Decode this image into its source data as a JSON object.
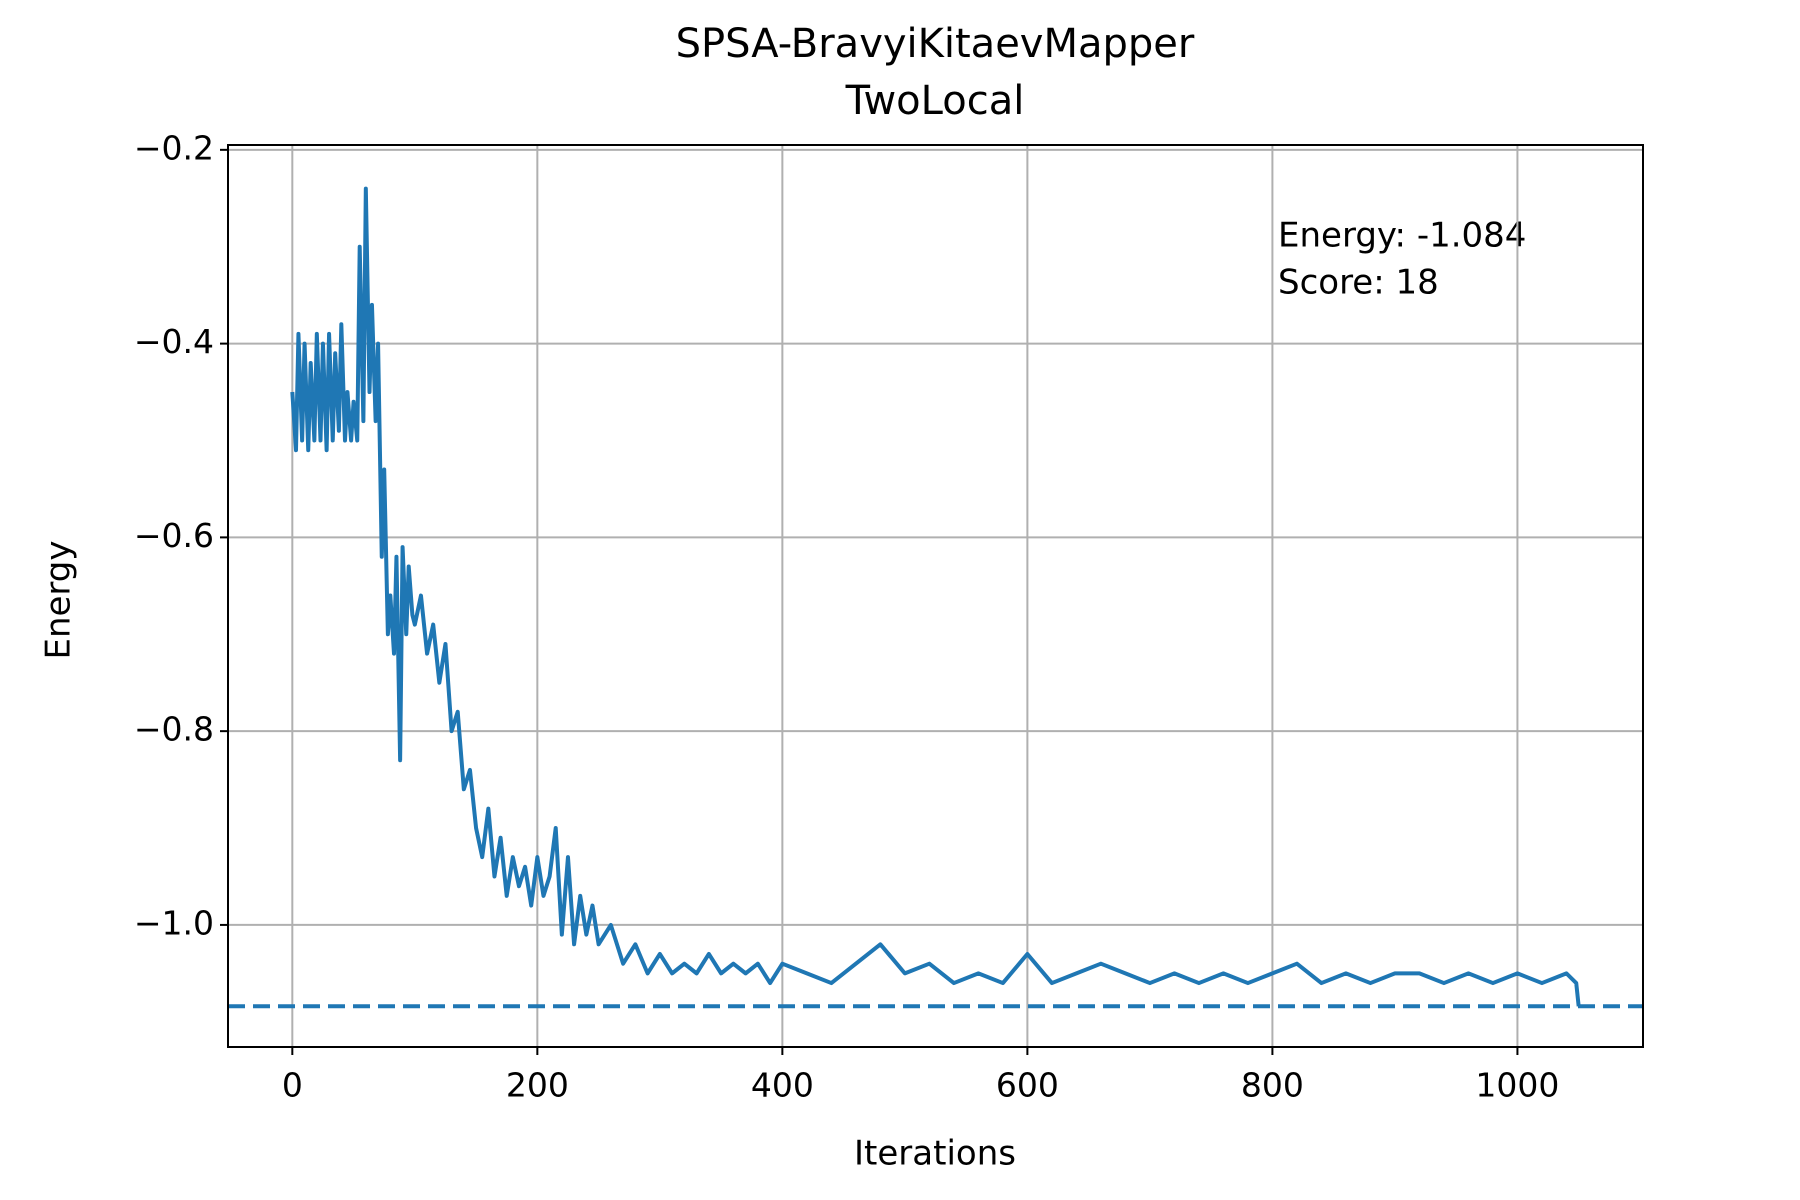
{
  "chart_data": {
    "type": "line",
    "title": "SPSA-BravyiKitaevMapper",
    "subtitle": "TwoLocal",
    "x_label": "Iterations",
    "y_label": "Energy",
    "annotations": [
      "Energy: -1.084",
      "Score: 18"
    ],
    "xlim": [
      -52.5,
      1102.5
    ],
    "ylim": [
      -1.126,
      -0.195
    ],
    "xticks": [
      0,
      200,
      400,
      600,
      800,
      1000
    ],
    "yticks": [
      {
        "value": -0.2,
        "label": "−0.2"
      },
      {
        "value": -0.4,
        "label": "−0.4"
      },
      {
        "value": -0.6,
        "label": "−0.6"
      },
      {
        "value": -0.8,
        "label": "−0.8"
      },
      {
        "value": -1.0,
        "label": "−1.0"
      }
    ],
    "grid": true,
    "reference_line": {
      "value": -1.084,
      "color": "#1f77b4",
      "style": "dashed"
    },
    "series": [
      {
        "color": "#1f77b4",
        "x": [
          0,
          3,
          5,
          8,
          10,
          13,
          15,
          18,
          20,
          23,
          25,
          28,
          30,
          33,
          35,
          38,
          40,
          43,
          45,
          48,
          50,
          53,
          55,
          58,
          60,
          63,
          65,
          68,
          70,
          73,
          75,
          78,
          80,
          83,
          85,
          88,
          90,
          93,
          95,
          98,
          100,
          105,
          110,
          115,
          120,
          125,
          130,
          135,
          140,
          145,
          150,
          155,
          160,
          165,
          170,
          175,
          180,
          185,
          190,
          195,
          200,
          205,
          210,
          215,
          220,
          225,
          230,
          235,
          240,
          245,
          250,
          260,
          270,
          280,
          290,
          300,
          310,
          320,
          330,
          340,
          350,
          360,
          370,
          380,
          390,
          400,
          420,
          440,
          460,
          480,
          500,
          520,
          540,
          560,
          580,
          600,
          620,
          640,
          660,
          680,
          700,
          720,
          740,
          760,
          780,
          800,
          820,
          840,
          860,
          880,
          900,
          920,
          940,
          960,
          980,
          1000,
          1020,
          1040,
          1048,
          1050
        ],
        "values": [
          -0.45,
          -0.51,
          -0.39,
          -0.5,
          -0.4,
          -0.51,
          -0.42,
          -0.5,
          -0.39,
          -0.5,
          -0.4,
          -0.51,
          -0.39,
          -0.5,
          -0.41,
          -0.49,
          -0.38,
          -0.5,
          -0.45,
          -0.5,
          -0.46,
          -0.5,
          -0.3,
          -0.48,
          -0.24,
          -0.45,
          -0.36,
          -0.48,
          -0.4,
          -0.62,
          -0.53,
          -0.7,
          -0.66,
          -0.72,
          -0.62,
          -0.83,
          -0.61,
          -0.7,
          -0.63,
          -0.68,
          -0.69,
          -0.66,
          -0.72,
          -0.69,
          -0.75,
          -0.71,
          -0.8,
          -0.78,
          -0.86,
          -0.84,
          -0.9,
          -0.93,
          -0.88,
          -0.95,
          -0.91,
          -0.97,
          -0.93,
          -0.96,
          -0.94,
          -0.98,
          -0.93,
          -0.97,
          -0.95,
          -0.9,
          -1.01,
          -0.93,
          -1.02,
          -0.97,
          -1.01,
          -0.98,
          -1.02,
          -1.0,
          -1.04,
          -1.02,
          -1.05,
          -1.03,
          -1.05,
          -1.04,
          -1.05,
          -1.03,
          -1.05,
          -1.04,
          -1.05,
          -1.04,
          -1.06,
          -1.04,
          -1.05,
          -1.06,
          -1.04,
          -1.02,
          -1.05,
          -1.04,
          -1.06,
          -1.05,
          -1.06,
          -1.03,
          -1.06,
          -1.05,
          -1.04,
          -1.05,
          -1.06,
          -1.05,
          -1.06,
          -1.05,
          -1.06,
          -1.05,
          -1.04,
          -1.06,
          -1.05,
          -1.06,
          -1.05,
          -1.05,
          -1.06,
          -1.05,
          -1.06,
          -1.05,
          -1.06,
          -1.05,
          -1.06,
          -1.084
        ]
      }
    ]
  }
}
